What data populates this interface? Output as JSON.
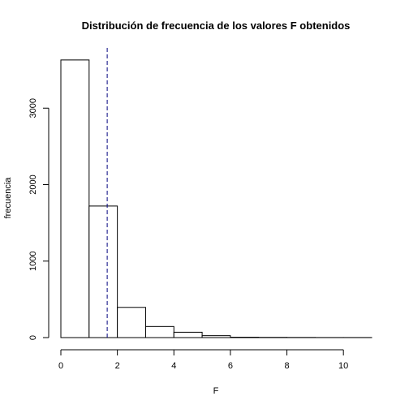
{
  "chart_data": {
    "type": "bar",
    "title": "Distribución de frecuencia de los valores F obtenidos",
    "xlabel": "F",
    "ylabel": "frecuencia",
    "bins": [
      {
        "x0": 0,
        "x1": 1,
        "count": 3630
      },
      {
        "x0": 1,
        "x1": 2,
        "count": 1720
      },
      {
        "x0": 2,
        "x1": 3,
        "count": 395
      },
      {
        "x0": 3,
        "x1": 4,
        "count": 145
      },
      {
        "x0": 4,
        "x1": 5,
        "count": 70
      },
      {
        "x0": 5,
        "x1": 6,
        "count": 25
      },
      {
        "x0": 6,
        "x1": 7,
        "count": 5
      },
      {
        "x0": 7,
        "x1": 8,
        "count": 3
      },
      {
        "x0": 8,
        "x1": 9,
        "count": 2
      },
      {
        "x0": 9,
        "x1": 10,
        "count": 1
      },
      {
        "x0": 10,
        "x1": 11,
        "count": 1
      }
    ],
    "xlim": [
      0,
      11
    ],
    "ylim": [
      0,
      3650
    ],
    "xticks": [
      0,
      2,
      4,
      6,
      8,
      10
    ],
    "yticks": [
      0,
      1000,
      2000,
      3000
    ],
    "reference_line": {
      "x": 1.64,
      "style": "dashed",
      "color": "#000080"
    },
    "bar_fill": "#ffffff",
    "bar_stroke": "#000000",
    "grid": false
  }
}
